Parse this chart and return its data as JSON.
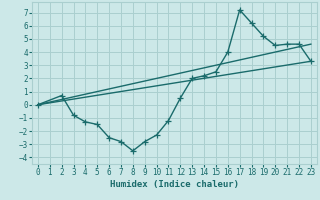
{
  "xlabel": "Humidex (Indice chaleur)",
  "xlim": [
    -0.5,
    23.5
  ],
  "ylim": [
    -4.5,
    7.8
  ],
  "xticks": [
    0,
    1,
    2,
    3,
    4,
    5,
    6,
    7,
    8,
    9,
    10,
    11,
    12,
    13,
    14,
    15,
    16,
    17,
    18,
    19,
    20,
    21,
    22,
    23
  ],
  "yticks": [
    -4,
    -3,
    -2,
    -1,
    0,
    1,
    2,
    3,
    4,
    5,
    6,
    7
  ],
  "bg_color": "#cce8e8",
  "line_color": "#1a6b6b",
  "grid_color": "#aacfcf",
  "curve1_x": [
    0,
    2,
    3,
    4,
    5,
    6,
    7,
    8,
    9,
    10,
    11,
    12,
    13,
    14,
    15,
    16,
    17,
    18,
    19,
    20,
    21,
    22,
    23
  ],
  "curve1_y": [
    0.0,
    0.7,
    -0.8,
    -1.3,
    -1.5,
    -2.5,
    -2.8,
    -3.5,
    -2.8,
    -2.3,
    -1.2,
    0.5,
    2.0,
    2.2,
    2.5,
    4.0,
    7.2,
    6.2,
    5.2,
    4.5,
    4.6,
    4.6,
    3.3
  ],
  "curve2_x": [
    0,
    23
  ],
  "curve2_y": [
    0.0,
    3.3
  ],
  "curve3_x": [
    0,
    23
  ],
  "curve3_y": [
    0.0,
    4.6
  ],
  "marker": "+",
  "markersize": 4,
  "linewidth": 1.0
}
